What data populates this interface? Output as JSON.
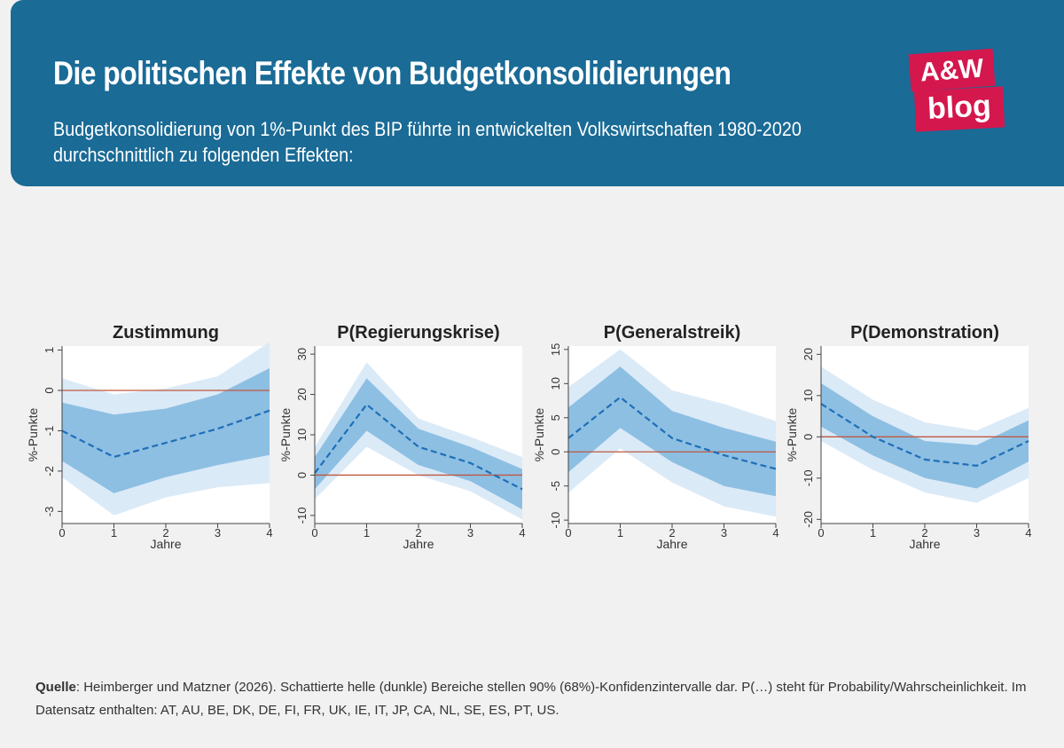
{
  "header": {
    "title": "Die politischen Effekte von Budgetkonsolidierungen",
    "subtitle": "Budgetkonsolidierung von 1%-Punkt des BIP führte in entwickelten Volkswirtschaften 1980-2020 durchschnittlich zu folgenden Effekten:",
    "logo_top": "A&W",
    "logo_bottom": "blog"
  },
  "colors": {
    "banner": "#1a6b96",
    "logo": "#d4174d",
    "ci90": "#dbeaf7",
    "ci68": "#8dbfe3",
    "estimate": "#1f6fb8",
    "zero_line": "#c0573f"
  },
  "chart_data": [
    {
      "type": "line",
      "title": "Zustimmung",
      "xlabel": "Jahre",
      "ylabel": "%-Punkte",
      "x": [
        0,
        1,
        2,
        3,
        4
      ],
      "yticks": [
        -3,
        -2,
        -1,
        0,
        1
      ],
      "ylim": [
        -3.3,
        1.1
      ],
      "series": [
        {
          "values": [
            -1.0,
            -1.65,
            -1.3,
            -0.95,
            -0.5
          ]
        }
      ],
      "ci68": {
        "low": [
          -1.75,
          -2.55,
          -2.15,
          -1.85,
          -1.6
        ],
        "high": [
          -0.3,
          -0.6,
          -0.45,
          -0.1,
          0.55
        ]
      },
      "ci90": {
        "low": [
          -2.15,
          -3.1,
          -2.65,
          -2.4,
          -2.3
        ],
        "high": [
          0.3,
          -0.1,
          0.05,
          0.35,
          1.2
        ]
      },
      "zero_line": 0
    },
    {
      "type": "line",
      "title": "P(Regierungskrise)",
      "xlabel": "Jahre",
      "ylabel": "%-Punkte",
      "x": [
        0,
        1,
        2,
        3,
        4
      ],
      "yticks": [
        -10,
        0,
        10,
        20,
        30
      ],
      "ylim": [
        -12,
        32
      ],
      "series": [
        {
          "values": [
            0.5,
            17.5,
            7,
            3,
            -3.5
          ]
        }
      ],
      "ci68": {
        "low": [
          -3.5,
          11,
          2.5,
          -1.5,
          -8.5
        ],
        "high": [
          4.5,
          24,
          11.5,
          7,
          1.5
        ]
      },
      "ci90": {
        "low": [
          -6,
          7,
          0,
          -4,
          -11
        ],
        "high": [
          7,
          28,
          14,
          9.5,
          4.5
        ]
      },
      "zero_line": 0
    },
    {
      "type": "line",
      "title": "P(Generalstreik)",
      "xlabel": "Jahre",
      "ylabel": "%-Punkte",
      "x": [
        0,
        1,
        2,
        3,
        4
      ],
      "yticks": [
        -10,
        -5,
        0,
        5,
        10,
        15
      ],
      "ylim": [
        -10.5,
        15.5
      ],
      "series": [
        {
          "values": [
            2,
            8,
            2,
            -0.5,
            -2.5
          ]
        }
      ],
      "ci68": {
        "low": [
          -3,
          3.5,
          -1.5,
          -5,
          -6.5
        ],
        "high": [
          6.5,
          12.5,
          6,
          3.5,
          1.5
        ]
      },
      "ci90": {
        "low": [
          -6,
          0.5,
          -4.5,
          -8,
          -9.5
        ],
        "high": [
          9.5,
          15,
          9,
          7,
          4.5
        ]
      },
      "zero_line": 0
    },
    {
      "type": "line",
      "title": "P(Demonstration)",
      "xlabel": "Jahre",
      "ylabel": "%-Punkte",
      "x": [
        0,
        1,
        2,
        3,
        4
      ],
      "yticks": [
        -20,
        -10,
        0,
        10,
        20
      ],
      "ylim": [
        -21,
        22
      ],
      "series": [
        {
          "values": [
            8,
            0,
            -5.5,
            -7,
            -1
          ]
        }
      ],
      "ci68": {
        "low": [
          2.5,
          -4.5,
          -10,
          -12.5,
          -6
        ],
        "high": [
          13,
          5,
          -1,
          -2,
          4
        ]
      },
      "ci90": {
        "low": [
          -1,
          -8,
          -13.5,
          -16,
          -10
        ],
        "high": [
          17,
          9,
          3.5,
          1.5,
          7
        ]
      },
      "zero_line": 0
    }
  ],
  "footer": {
    "source_label": "Quelle",
    "source_text": ": Heimberger und Matzner (2026). Schattierte helle (dunkle) Bereiche stellen 90% (68%)-Konfidenzintervalle dar. P(…) steht für Probability/Wahrscheinlichkeit. Im Datensatz enthalten: AT, AU, BE, DK, DE, FI, FR, UK, IE, IT, JP, CA, NL, SE, ES, PT, US."
  }
}
